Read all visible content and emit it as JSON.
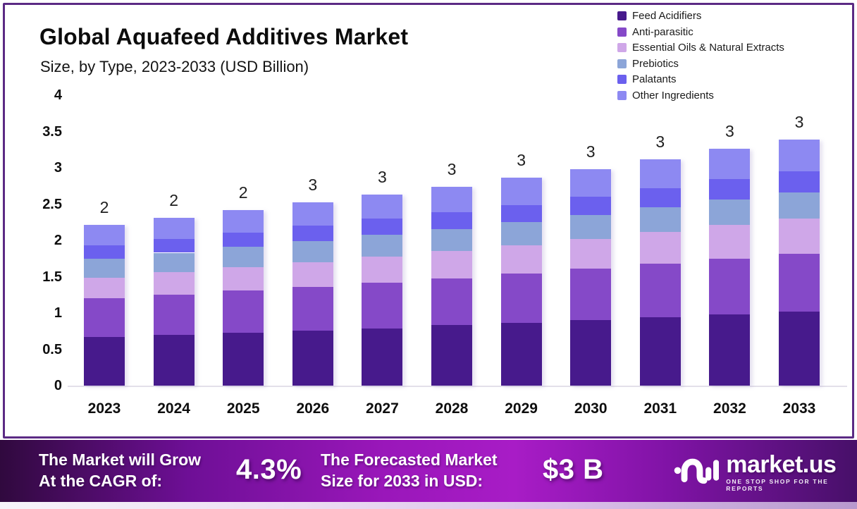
{
  "chart_data": {
    "type": "bar",
    "stacked": true,
    "title": "Global Aquafeed Additives Market",
    "subtitle": "Size, by Type, 2023-2033 (USD Billion)",
    "xlabel": "",
    "ylabel": "USD Billion",
    "ylim": [
      0,
      4
    ],
    "grid": false,
    "legend_position": "top-right",
    "categories": [
      "2023",
      "2024",
      "2025",
      "2026",
      "2027",
      "2028",
      "2029",
      "2030",
      "2031",
      "2032",
      "2033"
    ],
    "y_ticks": [
      "0",
      "0.5",
      "1",
      "1.5",
      "2",
      "2.5",
      "3",
      "3.5",
      "4"
    ],
    "bar_labels": [
      "2",
      "2",
      "2",
      "3",
      "3",
      "3",
      "3",
      "3",
      "3",
      "3",
      "3"
    ],
    "series": [
      {
        "name": "Feed Acidifiers",
        "color": "#471a8c",
        "values": [
          0.67,
          0.7,
          0.73,
          0.76,
          0.79,
          0.83,
          0.86,
          0.9,
          0.94,
          0.98,
          1.02
        ]
      },
      {
        "name": "Anti-parasitic",
        "color": "#8549c8",
        "values": [
          0.53,
          0.55,
          0.58,
          0.6,
          0.63,
          0.65,
          0.68,
          0.71,
          0.74,
          0.77,
          0.8
        ]
      },
      {
        "name": "Essential Oils & Natural Extracts",
        "color": "#cfa7e8",
        "values": [
          0.29,
          0.31,
          0.32,
          0.34,
          0.36,
          0.37,
          0.39,
          0.41,
          0.44,
          0.46,
          0.48
        ]
      },
      {
        "name": "Prebiotics",
        "color": "#8ca5d8",
        "values": [
          0.26,
          0.27,
          0.28,
          0.29,
          0.3,
          0.31,
          0.32,
          0.33,
          0.34,
          0.35,
          0.36
        ]
      },
      {
        "name": "Palatants",
        "color": "#6b60ee",
        "values": [
          0.18,
          0.19,
          0.2,
          0.21,
          0.22,
          0.23,
          0.24,
          0.25,
          0.26,
          0.28,
          0.29
        ]
      },
      {
        "name": "Other Ingredients",
        "color": "#8d89f2",
        "values": [
          0.28,
          0.29,
          0.31,
          0.32,
          0.33,
          0.35,
          0.37,
          0.38,
          0.4,
          0.42,
          0.44
        ]
      }
    ]
  },
  "banner": {
    "grow_line1": "The Market will Grow",
    "grow_line2": "At the CAGR of:",
    "cagr": "4.3%",
    "forecast_line1": "The Forecasted Market",
    "forecast_line2": "Size for 2033 in USD:",
    "forecast_value": "$3 B",
    "brand": "market.us",
    "tagline": "ONE STOP SHOP FOR THE REPORTS"
  },
  "colors": {
    "border": "#5b2a84",
    "banner_left": "#30093e",
    "banner_center": "#a81cc6",
    "banner_right": "#471069",
    "axis_line": "#e3e0ea",
    "text": "#0c0c0c"
  }
}
